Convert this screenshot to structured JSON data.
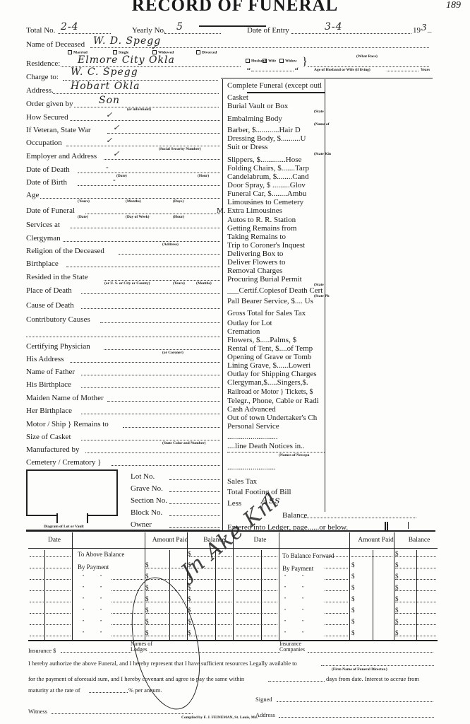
{
  "header": {
    "title": "RECORD OF FUNERAL",
    "page_number": "189"
  },
  "top": {
    "total_no_label": "Total No.",
    "total_no_value": "2-4",
    "yearly_no_label": "Yearly No.",
    "yearly_no_value": "5",
    "date_of_entry_label": "Date of Entry",
    "date_of_entry_value": "3-4",
    "year_prefix": "19",
    "year_value": "3_",
    "name_label": "Name of Deceased",
    "name_value": "W. D. Spegg",
    "marital": [
      "Married",
      "Single",
      "Widowed",
      "Divorced"
    ],
    "marital_checked": "Widowed",
    "what_race": "(What Race)",
    "residence_label": "Residence:",
    "residence_value": "Elmore City  Okla",
    "spouse_options": [
      "Husband",
      "Wife",
      "Widow"
    ],
    "spouse_or": "or",
    "spouse_of": "of",
    "age_spouse": "Age of Husband or Wife (if living)",
    "years": "Years",
    "charge_label": "Charge to:",
    "charge_value": "W. C. Spegg",
    "address_label": "Address.",
    "address_value": "Hobart Okla",
    "order_label": "Order given by",
    "order_value": "Son",
    "order_sub": "(or informant)"
  },
  "left_fields": [
    {
      "label": "How Secured",
      "mark": "✓"
    },
    {
      "label": "If Veteran, State War",
      "mark": "✓"
    },
    {
      "label": "Occupation",
      "mark": "✓",
      "sub": "(Social Security Number)"
    },
    {
      "label": "Employer and Address",
      "mark": "✓"
    },
    {
      "label": "Date of Death",
      "mark": "-",
      "subs": [
        "(Date)",
        "(Hour)"
      ]
    },
    {
      "label": "Date of Birth",
      "mark": "-"
    },
    {
      "label": "Age",
      "subs": [
        "(Years)",
        "(Months)",
        "(Days)"
      ]
    },
    {
      "label": "Date of Funeral",
      "end": "M.",
      "subs": [
        "(Date)",
        "(Day of Week)",
        "(Hour)"
      ]
    },
    {
      "label": "Services at"
    },
    {
      "label": "Clergyman",
      "subs": [
        "(Address)"
      ]
    },
    {
      "label": "Religion of the Deceased"
    },
    {
      "label": "Birthplace"
    },
    {
      "label": "Resided in the State",
      "subs": [
        "(or U. S. or City or County)",
        "(Years)",
        "(Months)"
      ]
    },
    {
      "label": "Place of Death"
    },
    {
      "label": "Cause of Death"
    },
    {
      "label": "Contributory Causes"
    },
    {
      "label": ""
    },
    {
      "label": "Certifying Physician",
      "subs": [
        "(or Coroner)"
      ]
    },
    {
      "label": "His Address"
    },
    {
      "label": "Name of Father"
    },
    {
      "label": "His Birthplace"
    },
    {
      "label": "Maiden Name of Mother"
    },
    {
      "label": "Her Birthplace"
    },
    {
      "label": "Motor / Ship } Remains to"
    },
    {
      "label": "Size of Casket",
      "subs": [
        "(State Color and Number)"
      ]
    },
    {
      "label": "Manufactured by"
    },
    {
      "label": "Cemetery / Crematory }"
    }
  ],
  "lot_fields": [
    "Lot No.",
    "Grave No.",
    "Section No.",
    "Block No.",
    "Owner"
  ],
  "diagram_label": "Diagram of Lot or Vault",
  "charges": {
    "title": "Complete Funeral (except outl",
    "items": [
      "Casket",
      "Burial Vault or Box",
      "Embalming Body",
      "Barber, $............Hair D",
      "Dressing Body, $..........U",
      "Suit or Dress",
      "Slippers, $.............Hose",
      "Folding Chairs, $.......Tarp",
      "Candelabrum, $........Cand",
      "Door Spray, $ .........Glov",
      "Funeral Car, $........Ambu",
      "Limousines to Cemetery",
      "Extra Limousines",
      "Autos to R. R. Station",
      "Getting Remains from",
      "Taking Remains to",
      "Trip to Coroner's Inquest",
      "Delivering Box to",
      "Deliver Flowers to",
      "Removal Charges",
      "Procuring Burial Permit",
      "___Certif.Copiesof Death Cert",
      "Pall Bearer Service, $.... Us",
      "Gross Total for Sales Tax",
      "Outlay for Lot",
      "Cremation",
      "Flowers, $.....Palms, $",
      "Rental of Tent, $....of Temp",
      "Opening of Grave or Tomb",
      "Lining Grave, $......Loweri",
      "Outlay for Shipping Charges",
      "Clergyman,$.....Singers,$.",
      "Railroad or Motor } Tickets, $",
      "Telegr., Phone, Cable or Radi",
      "Cash Advanced",
      "Out of town Undertaker's Ch",
      "Personal Service",
      "..........................",
      "....line Death Notices in..",
      "(Names of Newspa",
      ".........................",
      "Sales Tax",
      "Total Footing of Bill",
      "Less"
    ],
    "subs": [
      "(State",
      "(Name of",
      "(State Kin",
      "(State",
      "(State Ph"
    ],
    "less_value": "Ass",
    "balance": "Balance",
    "entered": "Entered into Ledger, page......or below."
  },
  "ledger": {
    "headers": [
      "Date",
      "Amount Paid",
      "Balance",
      "Date",
      "Amount Paid",
      "Balance"
    ],
    "left_rows": [
      "To Above Balance",
      "By Payment"
    ],
    "right_rows": [
      "To Balance Forward",
      "By Payment"
    ],
    "dollar": "$",
    "signature": "Jn Ake Knl"
  },
  "footer": {
    "insurance": "Insurance $",
    "lodges": "Names of Lodges",
    "companies": "Insurance Companies",
    "authorize": "I hereby authorize the above Funeral, and I hereby represent that I have sufficient resources Legally available to",
    "firm": "(Firm Name of Funeral Director.)",
    "payment": "for the payment of aforesaid sum, and I hereby covenant and agree to pay the same within",
    "days": "days from date.   Interest to accrue from",
    "maturity": "maturity at the rate of",
    "per_annum": "% per annum.",
    "signed": "Signed",
    "witness": "Witness",
    "address": "Address",
    "compiled": "Compiled by F. J. FEINEMAN, St. Louis, Mo."
  }
}
